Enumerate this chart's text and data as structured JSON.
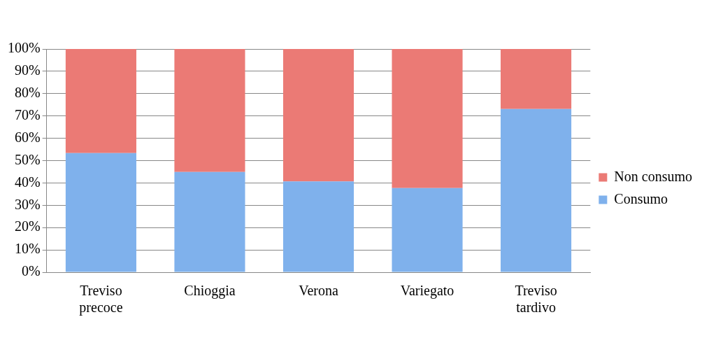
{
  "chart_data": {
    "type": "bar",
    "stacked": true,
    "categories": [
      "Treviso precoce",
      "Chioggia",
      "Verona",
      "Variegato",
      "Treviso tardivo"
    ],
    "series": [
      {
        "name": "Consumo",
        "color": "#7fb1ec",
        "values": [
          53.4,
          44.9,
          40.7,
          37.7,
          73.1
        ]
      },
      {
        "name": "Non consumo",
        "color": "#eb7a75",
        "values": [
          46.6,
          55.1,
          59.3,
          62.3,
          26.9
        ]
      }
    ],
    "ylim": [
      0,
      100
    ],
    "yticks": [
      {
        "value": 0,
        "label": "0%"
      },
      {
        "value": 10,
        "label": "10%"
      },
      {
        "value": 20,
        "label": "20%"
      },
      {
        "value": 30,
        "label": "30%"
      },
      {
        "value": 40,
        "label": "40%"
      },
      {
        "value": 50,
        "label": "50%"
      },
      {
        "value": 60,
        "label": "60%"
      },
      {
        "value": 70,
        "label": "70%"
      },
      {
        "value": 80,
        "label": "80%"
      },
      {
        "value": 90,
        "label": "90%"
      },
      {
        "value": 100,
        "label": "100%"
      }
    ],
    "grid": "y",
    "legend": "right"
  }
}
